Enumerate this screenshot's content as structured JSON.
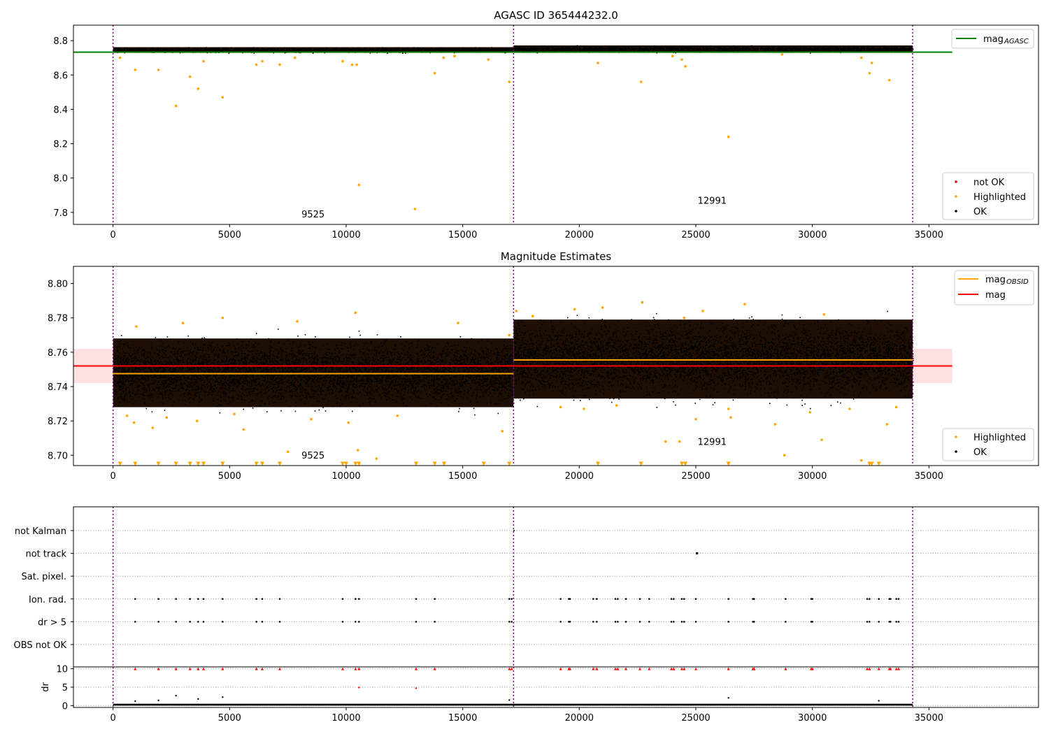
{
  "chart_data": [
    {
      "type": "scatter",
      "title": "AGASC ID 365444232.0",
      "xlim": [
        -1700,
        39700
      ],
      "ylim": [
        7.73,
        8.89
      ],
      "x_ticks": [
        0,
        5000,
        10000,
        15000,
        20000,
        25000,
        30000,
        35000
      ],
      "y_ticks": [
        7.8,
        8.0,
        8.2,
        8.4,
        8.6,
        8.8
      ],
      "y_tick_labels": [
        "7.8",
        "8.0",
        "8.2",
        "8.4",
        "8.6",
        "8.8"
      ],
      "grid": false,
      "legend_top": {
        "placement": "upper right",
        "entries": [
          {
            "label": "mag",
            "subscript": "AGASC",
            "color": "#008000",
            "kind": "line"
          }
        ]
      },
      "legend_bottom": {
        "placement": "lower right",
        "entries": [
          {
            "label": "not OK",
            "color": "#ff0000",
            "kind": "dot"
          },
          {
            "label": "Highlighted",
            "color": "#ffa500",
            "kind": "dot"
          },
          {
            "label": "OK",
            "color": "#000000",
            "kind": "dot"
          }
        ]
      },
      "obsid_boundaries": [
        0,
        17180,
        34300
      ],
      "obsid_labels": [
        {
          "text": "9525",
          "x": 8580,
          "y": 7.77
        },
        {
          "text": "12991",
          "x": 25700,
          "y": 7.85
        }
      ],
      "mag_agasc": {
        "value": 8.733,
        "x_range": [
          -1700,
          36000
        ]
      },
      "ok_band": [
        {
          "x_range": [
            0,
            17180
          ],
          "y_range": [
            8.732,
            8.762
          ]
        },
        {
          "x_range": [
            17180,
            34300
          ],
          "y_range": [
            8.735,
            8.772
          ]
        }
      ],
      "highlighted": {
        "x": [
          300,
          950,
          1950,
          2700,
          3300,
          3650,
          3880,
          4700,
          6150,
          6400,
          7150,
          7800,
          9850,
          10250,
          10450,
          10550,
          12950,
          13800,
          14180,
          14650,
          16100,
          17000,
          20800,
          22650,
          24000,
          24400,
          24550,
          26400,
          28700,
          32100,
          32450,
          32550,
          33300
        ],
        "y": [
          8.7,
          8.63,
          8.63,
          8.42,
          8.59,
          8.52,
          8.68,
          8.47,
          8.66,
          8.68,
          8.66,
          8.7,
          8.68,
          8.66,
          8.66,
          7.96,
          7.82,
          8.61,
          8.7,
          8.71,
          8.69,
          8.56,
          8.67,
          8.56,
          8.71,
          8.69,
          8.65,
          8.24,
          8.72,
          8.7,
          8.61,
          8.67,
          8.57
        ]
      }
    },
    {
      "type": "scatter",
      "title": "Magnitude Estimates",
      "xlim": [
        -1700,
        39700
      ],
      "ylim": [
        8.694,
        8.81
      ],
      "x_ticks": [
        0,
        5000,
        10000,
        15000,
        20000,
        25000,
        30000,
        35000
      ],
      "y_ticks": [
        8.7,
        8.72,
        8.74,
        8.76,
        8.78,
        8.8
      ],
      "y_tick_labels": [
        "8.70",
        "8.72",
        "8.74",
        "8.76",
        "8.78",
        "8.80"
      ],
      "grid": false,
      "legend_top": {
        "placement": "upper right",
        "entries": [
          {
            "label": "mag",
            "subscript": "OBSID",
            "color": "#ffa500",
            "kind": "line"
          },
          {
            "label": "mag",
            "subscript": "",
            "color": "#ff0000",
            "kind": "line"
          }
        ]
      },
      "legend_bottom": {
        "placement": "lower right",
        "entries": [
          {
            "label": "Highlighted",
            "color": "#ffa500",
            "kind": "dot"
          },
          {
            "label": "OK",
            "color": "#000000",
            "kind": "dot"
          }
        ]
      },
      "obsid_boundaries": [
        0,
        17180,
        34300
      ],
      "obsid_labels": [
        {
          "text": "9525",
          "x": 8580,
          "y": 8.698
        },
        {
          "text": "12991",
          "x": 25700,
          "y": 8.706
        }
      ],
      "mag": {
        "value": 8.752,
        "band": [
          8.742,
          8.762
        ],
        "x_range": [
          -1700,
          36000
        ]
      },
      "mag_obsid": [
        {
          "x_range": [
            0,
            17180
          ],
          "value": 8.7475
        },
        {
          "x_range": [
            17180,
            34300
          ],
          "value": 8.7555
        }
      ],
      "ok_band": [
        {
          "x_range": [
            0,
            17180
          ],
          "y_range": [
            8.728,
            8.768
          ]
        },
        {
          "x_range": [
            17180,
            34300
          ],
          "y_range": [
            8.733,
            8.779
          ]
        }
      ],
      "highlighted_low_markers_x": [
        300,
        950,
        1950,
        2700,
        3300,
        3650,
        3880,
        4700,
        6150,
        6400,
        7150,
        9850,
        10000,
        10400,
        10550,
        13000,
        13800,
        14200,
        15900,
        17000,
        20800,
        22650,
        24400,
        24550,
        26400,
        32450,
        32550,
        32850
      ],
      "highlighted_low_markers_y": 8.695,
      "highlighted": {
        "x": [
          600,
          900,
          1000,
          1700,
          2300,
          3000,
          3600,
          4700,
          5200,
          5600,
          7500,
          7900,
          8500,
          10100,
          10400,
          11300,
          12200,
          14800,
          16700,
          17000,
          17300,
          18000,
          19200,
          19800,
          20200,
          21000,
          21600,
          22700,
          23700,
          24500,
          25000,
          25300,
          26400,
          27100,
          28400,
          28800,
          29900,
          30400,
          30500,
          31600,
          32100,
          33200,
          33600,
          10500,
          24300,
          26500
        ],
        "y": [
          8.723,
          8.719,
          8.775,
          8.716,
          8.722,
          8.777,
          8.72,
          8.78,
          8.724,
          8.715,
          8.702,
          8.778,
          8.721,
          8.719,
          8.783,
          8.698,
          8.723,
          8.777,
          8.714,
          8.77,
          8.784,
          8.781,
          8.728,
          8.785,
          8.727,
          8.786,
          8.729,
          8.789,
          8.708,
          8.78,
          8.721,
          8.784,
          8.727,
          8.788,
          8.718,
          8.7,
          8.725,
          8.709,
          8.782,
          8.727,
          8.697,
          8.718,
          8.728,
          8.703,
          8.708,
          8.722
        ]
      }
    },
    {
      "type": "scatter",
      "title": "",
      "xlim": [
        -1700,
        39700
      ],
      "categories": [
        "not Kalman",
        "not track",
        "Sat. pixel.",
        "Ion. rad.",
        "dr > 5",
        "OBS not OK"
      ],
      "grid": true,
      "obsid_boundaries": [
        0,
        17180,
        34300
      ],
      "flag_events_x": [
        950,
        1950,
        2700,
        3300,
        3650,
        3880,
        4700,
        6150,
        6400,
        7150,
        9850,
        10400,
        10550,
        13000,
        13800,
        17000,
        17100,
        19200,
        19550,
        19600,
        20600,
        20750,
        21550,
        21650,
        22000,
        22600,
        23000,
        23950,
        24050,
        24400,
        24500,
        25000,
        26400,
        27450,
        27500,
        28850,
        29950,
        30000,
        32350,
        32450,
        32850,
        33300,
        33350,
        33600,
        33700
      ],
      "not_track_x": [
        25050
      ],
      "not_kalman_x": [
        17200
      ]
    },
    {
      "type": "scatter",
      "title": "",
      "xlim": [
        -1700,
        39700
      ],
      "ylim": [
        -0.5,
        10.5
      ],
      "ylabel": "dr",
      "x_ticks": [
        0,
        5000,
        10000,
        15000,
        20000,
        25000,
        30000,
        35000
      ],
      "y_ticks": [
        0,
        5,
        10
      ],
      "y_tick_labels": [
        "0",
        "5",
        "10"
      ],
      "grid": true,
      "obsid_boundaries": [
        0,
        17180,
        34300
      ],
      "ok_band": [
        {
          "x_range": [
            0,
            34300
          ],
          "y_range": [
            0,
            0.5
          ]
        }
      ],
      "not_ok_capped_x": [
        950,
        1950,
        2700,
        3300,
        3650,
        3880,
        4700,
        6150,
        6400,
        7150,
        9850,
        10400,
        10550,
        13000,
        13800,
        17000,
        17100,
        19200,
        19550,
        19600,
        20600,
        20750,
        21550,
        21650,
        22000,
        22600,
        23000,
        23950,
        24050,
        24400,
        24500,
        25000,
        26400,
        27450,
        27500,
        28850,
        29950,
        30000,
        32350,
        32450,
        32850,
        33300,
        33350,
        33600,
        33700
      ],
      "not_ok_capped_y": 10,
      "not_ok_points": {
        "x": [
          10550,
          13000
        ],
        "y": [
          4.9,
          4.7
        ]
      },
      "ok_outliers": {
        "x": [
          950,
          1950,
          2700,
          3650,
          4700,
          17000,
          26400,
          32850
        ],
        "y": [
          1.2,
          1.4,
          2.7,
          1.8,
          2.3,
          1.5,
          2.1,
          1.3
        ]
      }
    }
  ]
}
